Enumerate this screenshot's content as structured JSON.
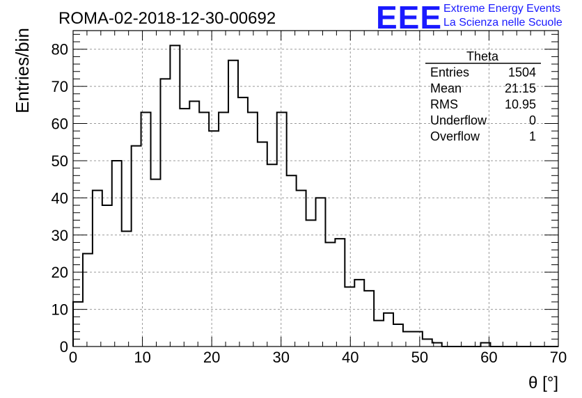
{
  "chart_data": {
    "type": "bar",
    "title": "ROMA-02-2018-12-30-00692",
    "xlabel": "θ [°]",
    "ylabel": "Entries/bin",
    "xlim": [
      0,
      70
    ],
    "ylim": [
      0,
      85
    ],
    "bin_width": 1.4,
    "xticks": [
      0,
      10,
      20,
      30,
      40,
      50,
      60,
      70
    ],
    "yticks": [
      0,
      10,
      20,
      30,
      40,
      50,
      60,
      70,
      80
    ],
    "grid": true,
    "histogram_style": "step",
    "values": [
      12,
      25,
      42,
      38,
      50,
      31,
      54,
      63,
      45,
      72,
      81,
      64,
      66,
      63,
      58,
      63,
      77,
      67,
      63,
      55,
      49,
      63,
      46,
      42,
      34,
      40,
      28,
      29,
      16,
      18,
      15,
      7,
      9,
      6,
      4,
      4,
      2,
      1,
      0,
      0,
      0,
      0,
      1,
      0,
      0,
      0,
      0,
      0,
      0,
      0
    ],
    "stats_box": {
      "title": "Theta",
      "rows": [
        {
          "label": "Entries",
          "value": "1504"
        },
        {
          "label": "Mean",
          "value": "21.15"
        },
        {
          "label": "RMS",
          "value": "10.95"
        },
        {
          "label": "Underflow",
          "value": "0"
        },
        {
          "label": "Overflow",
          "value": "1"
        }
      ]
    }
  },
  "logo": {
    "text": "EEE",
    "line1": "Extreme Energy Events",
    "line2": "La Scienza nelle Scuole",
    "color": "#1a1aff"
  }
}
